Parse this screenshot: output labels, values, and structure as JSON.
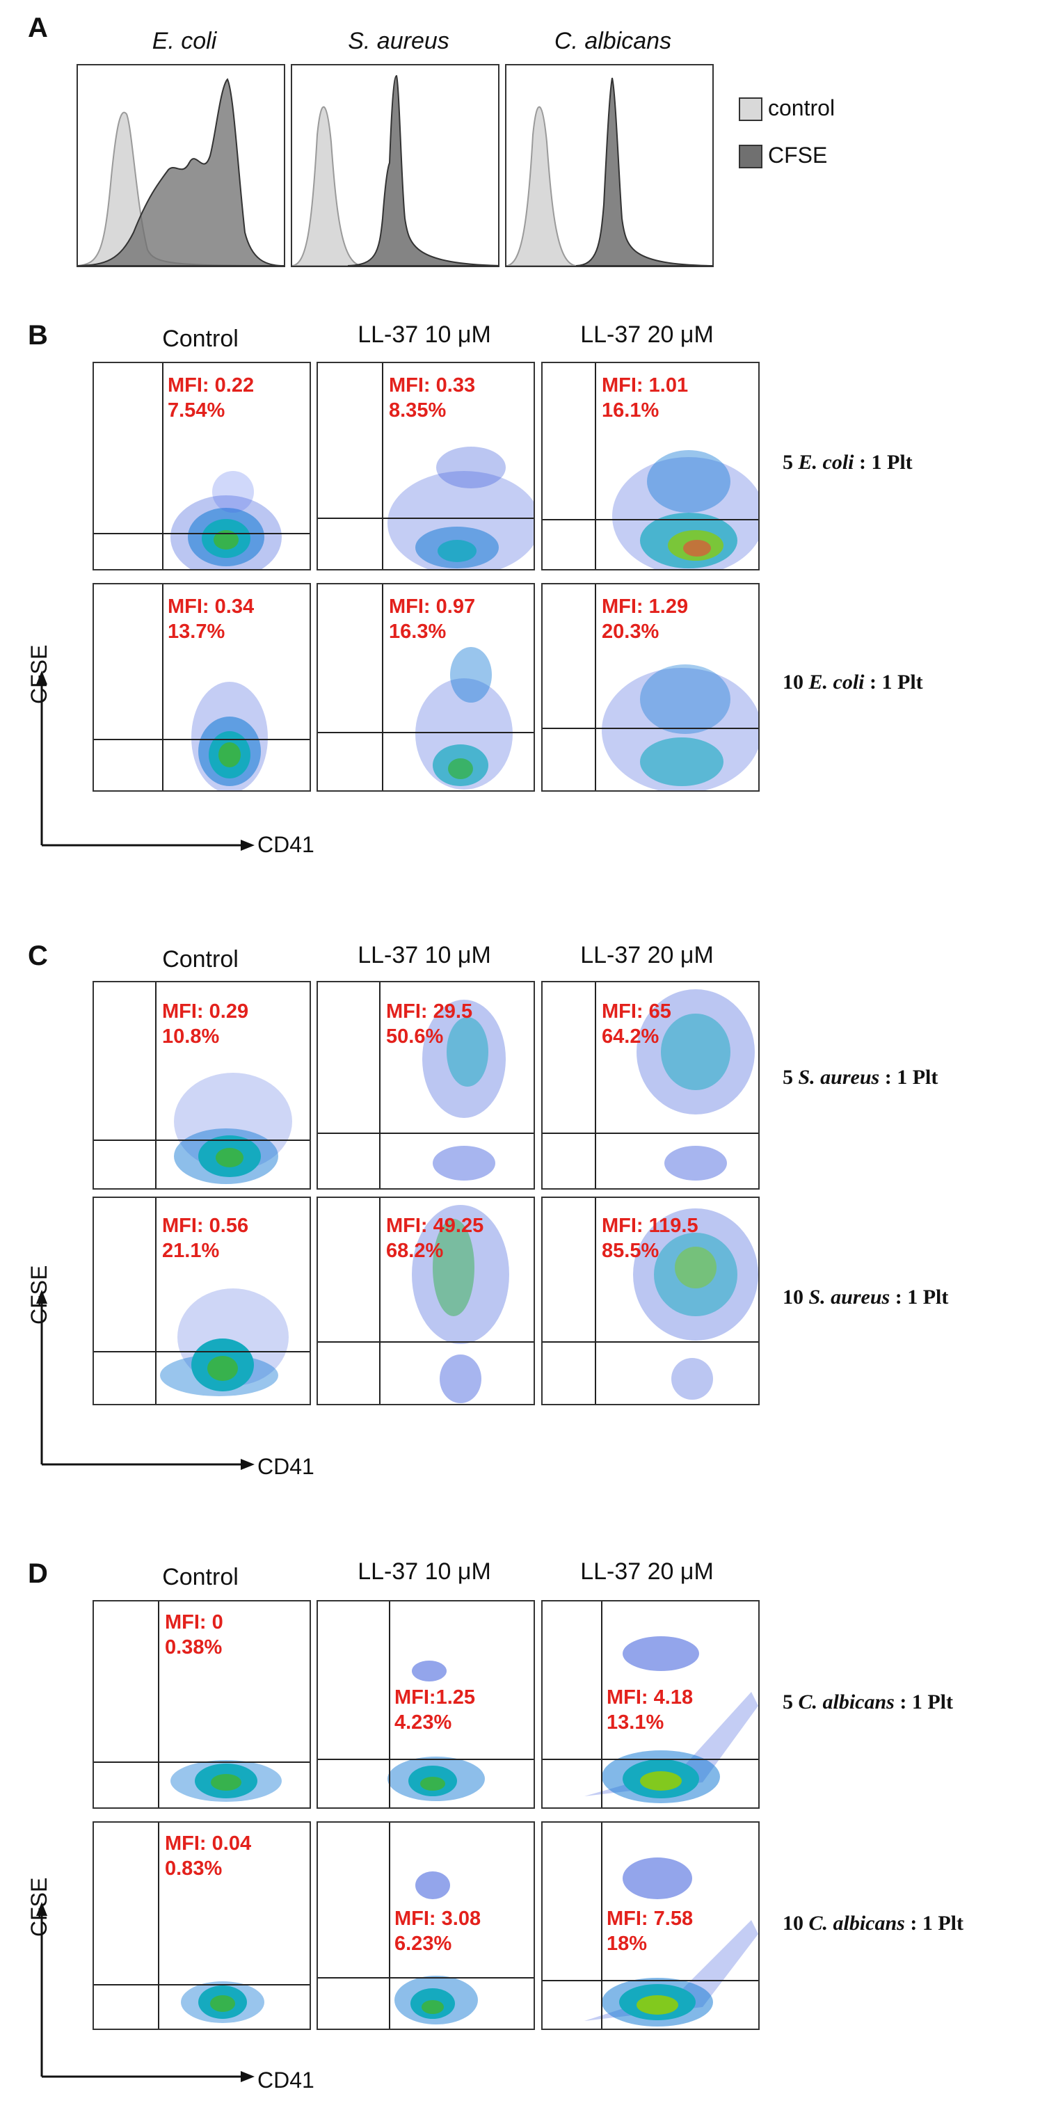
{
  "panelA": {
    "letter": "A",
    "histograms": [
      {
        "title": "E. coli"
      },
      {
        "title": "S. aureus"
      },
      {
        "title": "C. albicans"
      }
    ],
    "legend": [
      {
        "label": "control",
        "color": "#d9d9d9"
      },
      {
        "label": "CFSE",
        "color": "#707070"
      }
    ]
  },
  "columns": [
    "Control",
    "LL-37 10 μM",
    "LL-37 20 μM"
  ],
  "axes": {
    "x": "CD41",
    "y": "CFSE"
  },
  "panelB": {
    "letter": "B",
    "rows": [
      {
        "label_pre": "5 ",
        "label_species": "E. coli",
        "label_post": " : 1 Plt",
        "gates": [
          {
            "mfi": "MFI: 0.22",
            "pct": "7.54%"
          },
          {
            "mfi": "MFI: 0.33",
            "pct": "8.35%"
          },
          {
            "mfi": "MFI: 1.01",
            "pct": "16.1%"
          }
        ]
      },
      {
        "label_pre": "10 ",
        "label_species": "E. coli",
        "label_post": " : 1 Plt",
        "gates": [
          {
            "mfi": "MFI: 0.34",
            "pct": "13.7%"
          },
          {
            "mfi": "MFI: 0.97",
            "pct": "16.3%"
          },
          {
            "mfi": "MFI: 1.29",
            "pct": "20.3%"
          }
        ]
      }
    ]
  },
  "panelC": {
    "letter": "C",
    "rows": [
      {
        "label_pre": "5 ",
        "label_species": "S. aureus",
        "label_post": " : 1 Plt",
        "gates": [
          {
            "mfi": "MFI: 0.29",
            "pct": "10.8%"
          },
          {
            "mfi": "MFI: 29.5",
            "pct": "50.6%"
          },
          {
            "mfi": "MFI: 65",
            "pct": "64.2%"
          }
        ]
      },
      {
        "label_pre": "10 ",
        "label_species": "S. aureus",
        "label_post": " : 1 Plt",
        "gates": [
          {
            "mfi": "MFI: 0.56",
            "pct": "21.1%"
          },
          {
            "mfi": "MFI: 49.25",
            "pct": "68.2%"
          },
          {
            "mfi": "MFI: 119.5",
            "pct": "85.5%"
          }
        ]
      }
    ]
  },
  "panelD": {
    "letter": "D",
    "rows": [
      {
        "label_pre": "5 ",
        "label_species": "C. albicans",
        "label_post": " : 1 Plt",
        "gates": [
          {
            "mfi": "MFI: 0",
            "pct": "0.38%"
          },
          {
            "mfi": "MFI:1.25",
            "pct": "4.23%"
          },
          {
            "mfi": "MFI: 4.18",
            "pct": "13.1%"
          }
        ]
      },
      {
        "label_pre": "10 ",
        "label_species": "C. albicans",
        "label_post": " : 1 Plt",
        "gates": [
          {
            "mfi": "MFI: 0.04",
            "pct": "0.83%"
          },
          {
            "mfi": "MFI: 3.08",
            "pct": "6.23%"
          },
          {
            "mfi": "MFI: 7.58",
            "pct": "18%"
          }
        ]
      }
    ]
  }
}
